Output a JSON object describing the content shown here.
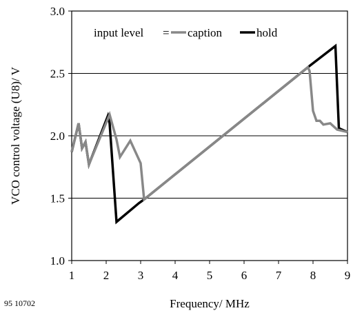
{
  "figure_id": "95 10702",
  "chart_data": {
    "type": "line",
    "xlabel": "Frequency/ MHz",
    "ylabel": "VCO control voltage (U8)/ V",
    "xlim": [
      1,
      9
    ],
    "ylim": [
      1.0,
      3.0
    ],
    "xticks": [
      "1",
      "2",
      "3",
      "4",
      "5",
      "6",
      "7",
      "8",
      "9"
    ],
    "yticks": [
      "1.0",
      "1.5",
      "2.0",
      "2.5",
      "3.0"
    ],
    "grid": "horizontal",
    "legend": {
      "title": "input level",
      "separator": "=",
      "placement": "top"
    },
    "series": [
      {
        "name": "hold",
        "color": "#000000",
        "x": [
          1.0,
          1.2,
          1.3,
          1.4,
          1.5,
          2.05,
          2.1,
          2.3,
          2.95,
          3.1,
          7.9,
          8.65,
          8.75,
          9.0
        ],
        "y": [
          1.87,
          2.1,
          1.9,
          1.95,
          1.77,
          2.16,
          2.1,
          1.31,
          1.46,
          1.49,
          2.56,
          2.72,
          2.06,
          2.03
        ]
      },
      {
        "name": "caption",
        "color": "#888888",
        "x": [
          1.0,
          1.2,
          1.3,
          1.4,
          1.5,
          2.1,
          2.3,
          2.4,
          2.7,
          3.0,
          3.1,
          7.85,
          7.9,
          8.0,
          8.1,
          8.2,
          8.3,
          8.5,
          8.7,
          9.0
        ],
        "y": [
          1.87,
          2.1,
          1.9,
          1.95,
          1.77,
          2.17,
          1.97,
          1.83,
          1.96,
          1.78,
          1.49,
          2.55,
          2.52,
          2.2,
          2.12,
          2.12,
          2.09,
          2.1,
          2.05,
          2.03
        ]
      }
    ]
  }
}
